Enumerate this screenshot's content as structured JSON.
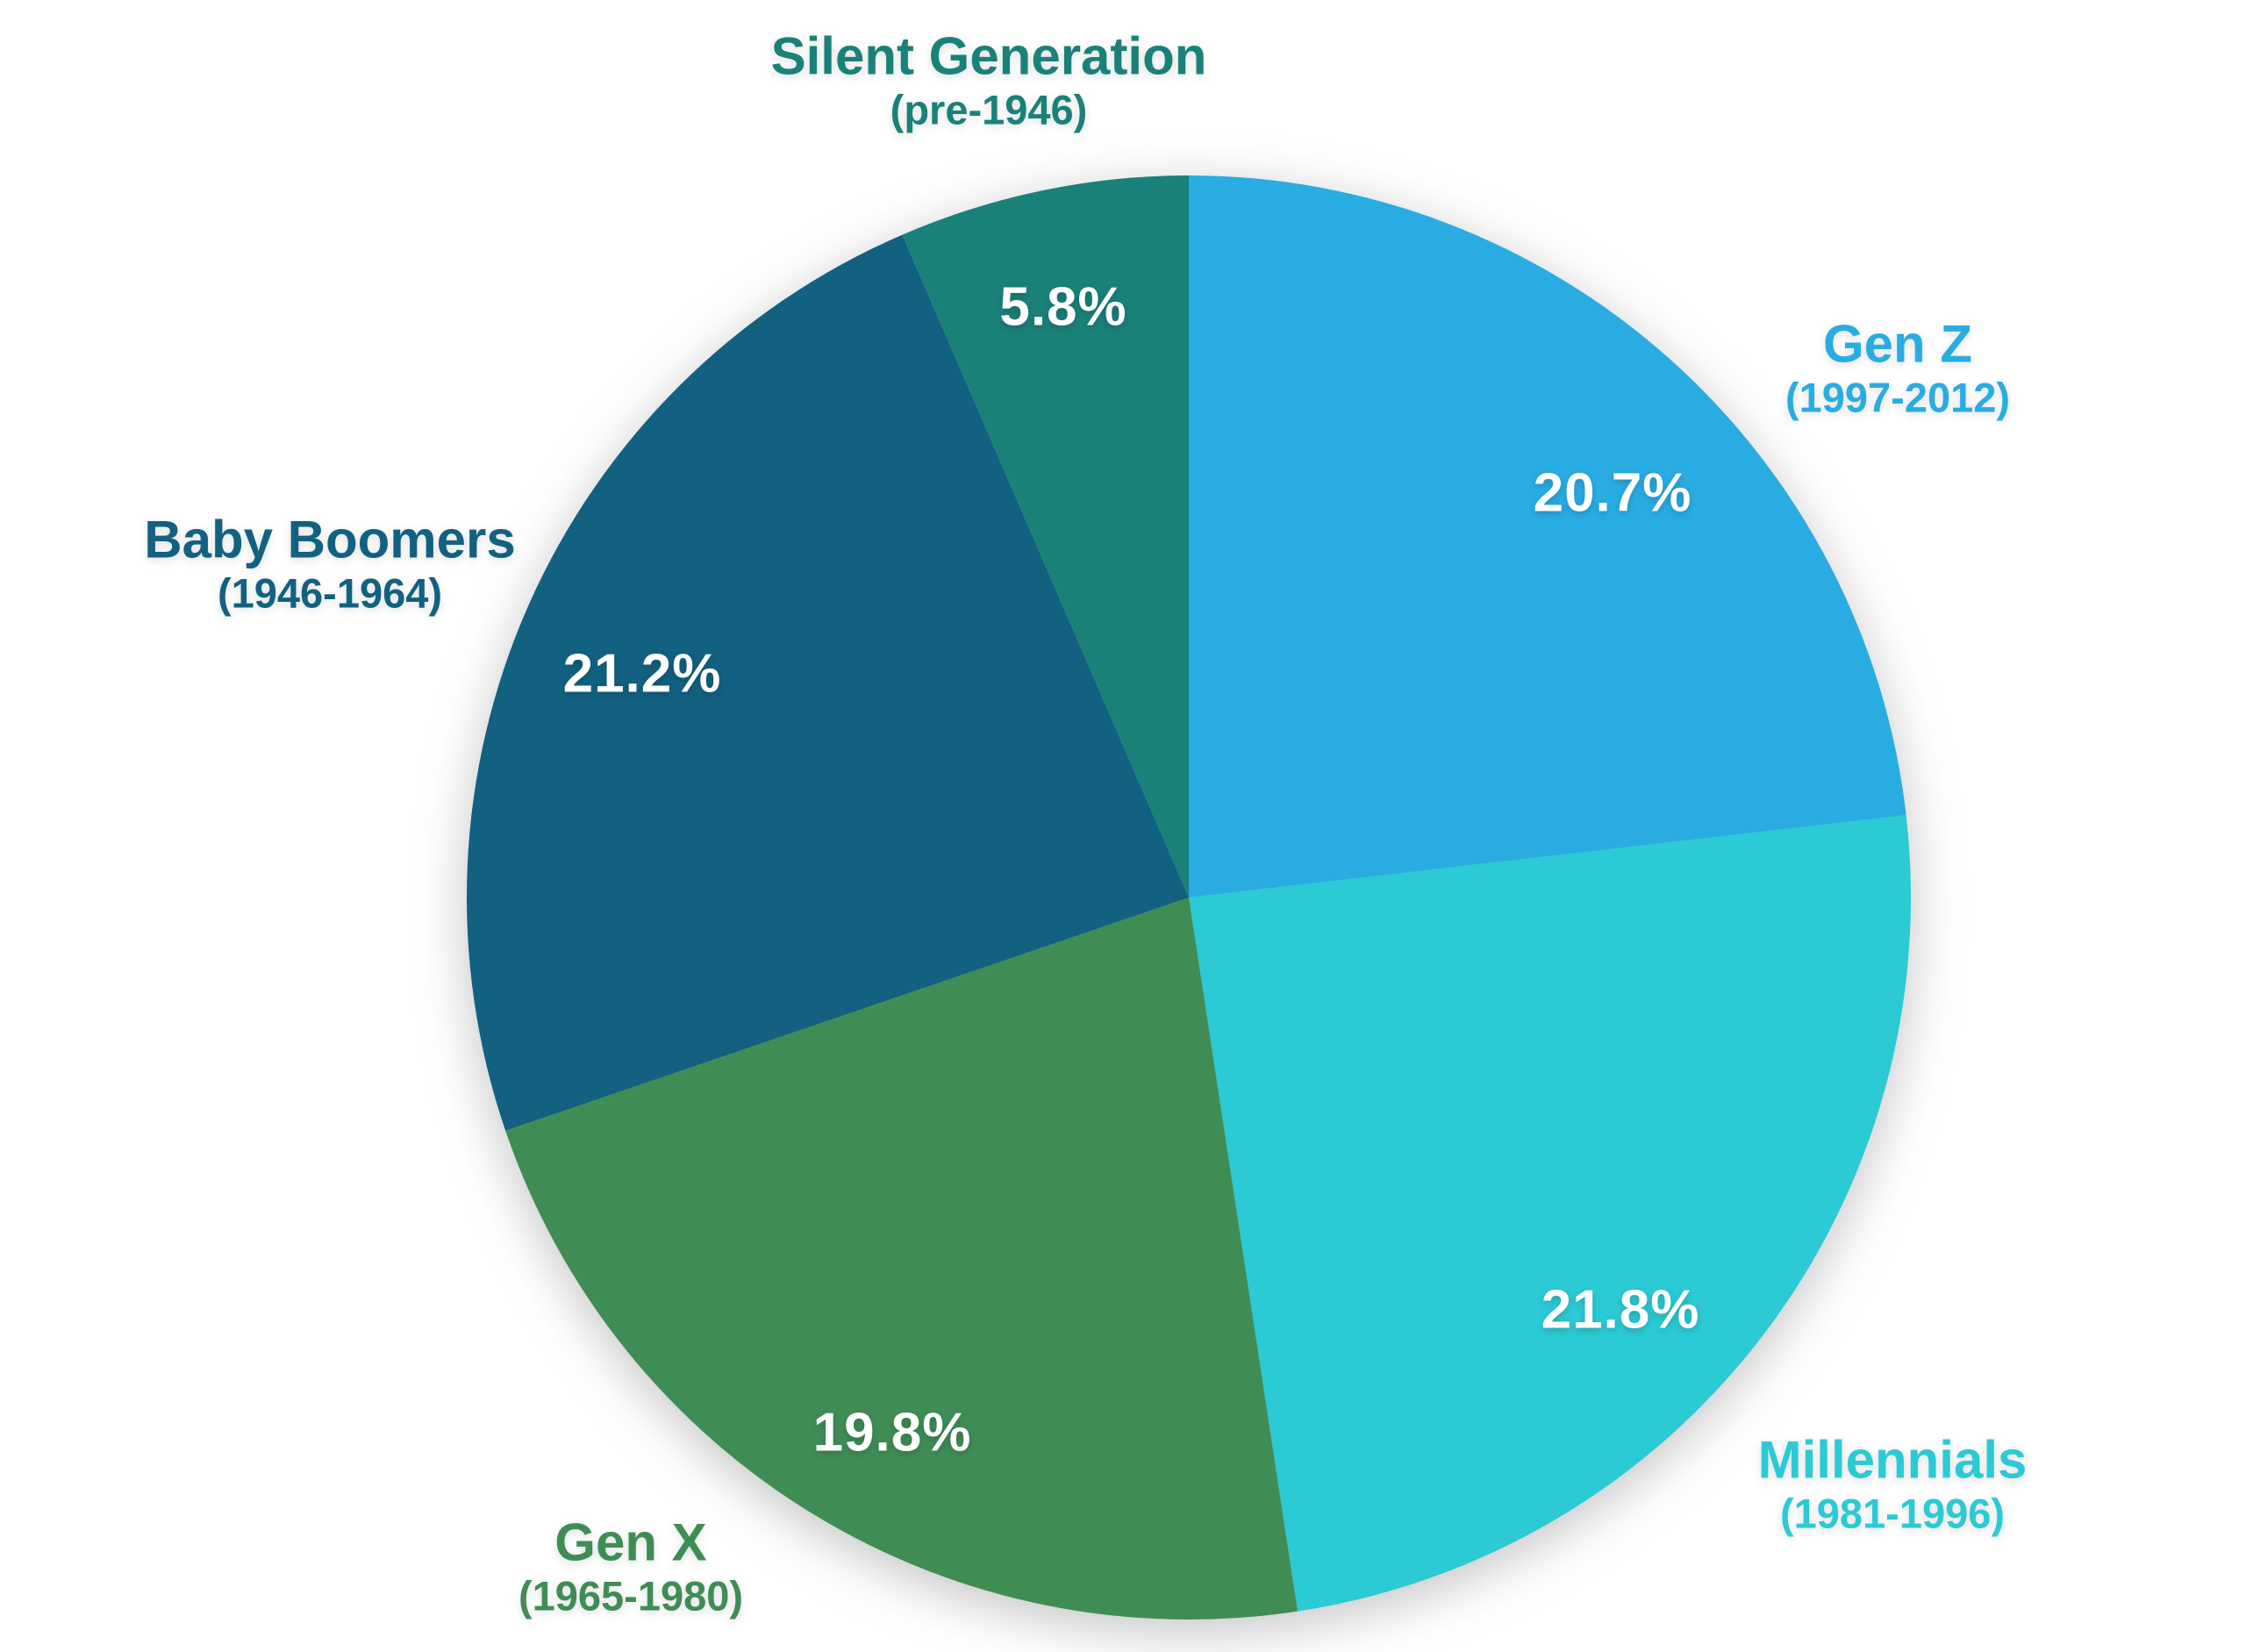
{
  "chart_data": {
    "type": "pie",
    "title": "",
    "direction": "clockwise",
    "start_angle_deg": 0,
    "legend_position": "around-pie",
    "background": "#FFFFFF",
    "value_label_color": "#FFFFFF",
    "slices": [
      {
        "label": "Gen Z",
        "sublabel": "(1997-2012)",
        "value": 20.7,
        "display": "20.7%",
        "color": "#29ACE2"
      },
      {
        "label": "Millennials",
        "sublabel": "(1981-1996)",
        "value": 21.8,
        "display": "21.8%",
        "color": "#2BCAD4"
      },
      {
        "label": "Gen X",
        "sublabel": "(1965-1980)",
        "value": 19.8,
        "display": "19.8%",
        "color": "#3F8D55"
      },
      {
        "label": "Baby Boomers",
        "sublabel": "(1946-1964)",
        "value": 21.2,
        "display": "21.2%",
        "color": "#126181"
      },
      {
        "label": "Silent Generation",
        "sublabel": "(pre-1946)",
        "value": 5.8,
        "display": "5.8%",
        "color": "#1A8179"
      }
    ]
  }
}
